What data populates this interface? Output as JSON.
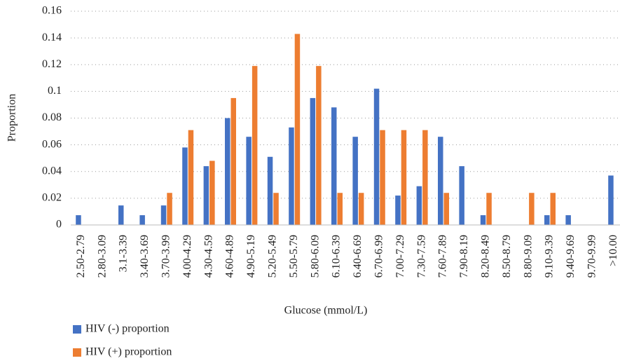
{
  "chart_data": {
    "type": "bar",
    "y_label": "Proportion",
    "x_label": "Glucose (mmol/L)",
    "categories": [
      "2.50-2.79",
      "2.80-3.09",
      "3.1-3.39",
      "3.40-3.69",
      "3.70-3.99",
      "4.00-4.29",
      "4.30-4.59",
      "4.60-4.89",
      "4.90-5.19",
      "5.20-5.49",
      "5.50-5.79",
      "5.80-6.09",
      "6.10-6.39",
      "6.40-6.69",
      "6.70-6.99",
      "7.00-7.29",
      "7.30-7.59",
      "7.60-7.89",
      "7.90-8.19",
      "8.20-8.49",
      "8.50-8.79",
      "8.80-9.09",
      "9.10-9.39",
      "9.40-9.69",
      "9.70-9.99",
      ">10.00"
    ],
    "series": [
      {
        "name": "HIV (-) proportion",
        "color": "#4472c4",
        "values": [
          0.0073,
          0,
          0.0146,
          0.0073,
          0.0146,
          0.058,
          0.044,
          0.08,
          0.066,
          0.051,
          0.073,
          0.095,
          0.088,
          0.066,
          0.102,
          0.022,
          0.029,
          0.066,
          0.044,
          0.0073,
          0,
          0,
          0.0073,
          0.0073,
          0,
          0.037
        ]
      },
      {
        "name": "HIV (+) proportion",
        "color": "#ed7d31",
        "values": [
          0,
          0,
          0,
          0,
          0.024,
          0.071,
          0.048,
          0.095,
          0.119,
          0.024,
          0.143,
          0.119,
          0.024,
          0.024,
          0.071,
          0.071,
          0.071,
          0.024,
          0,
          0.024,
          0,
          0.024,
          0.024,
          0,
          0,
          0
        ]
      }
    ],
    "ylim": [
      0,
      0.16
    ],
    "yticks": [
      0,
      0.02,
      0.04,
      0.06,
      0.08,
      0.1,
      0.12,
      0.14,
      0.16
    ],
    "grid": true,
    "legend": "bottom-left"
  }
}
